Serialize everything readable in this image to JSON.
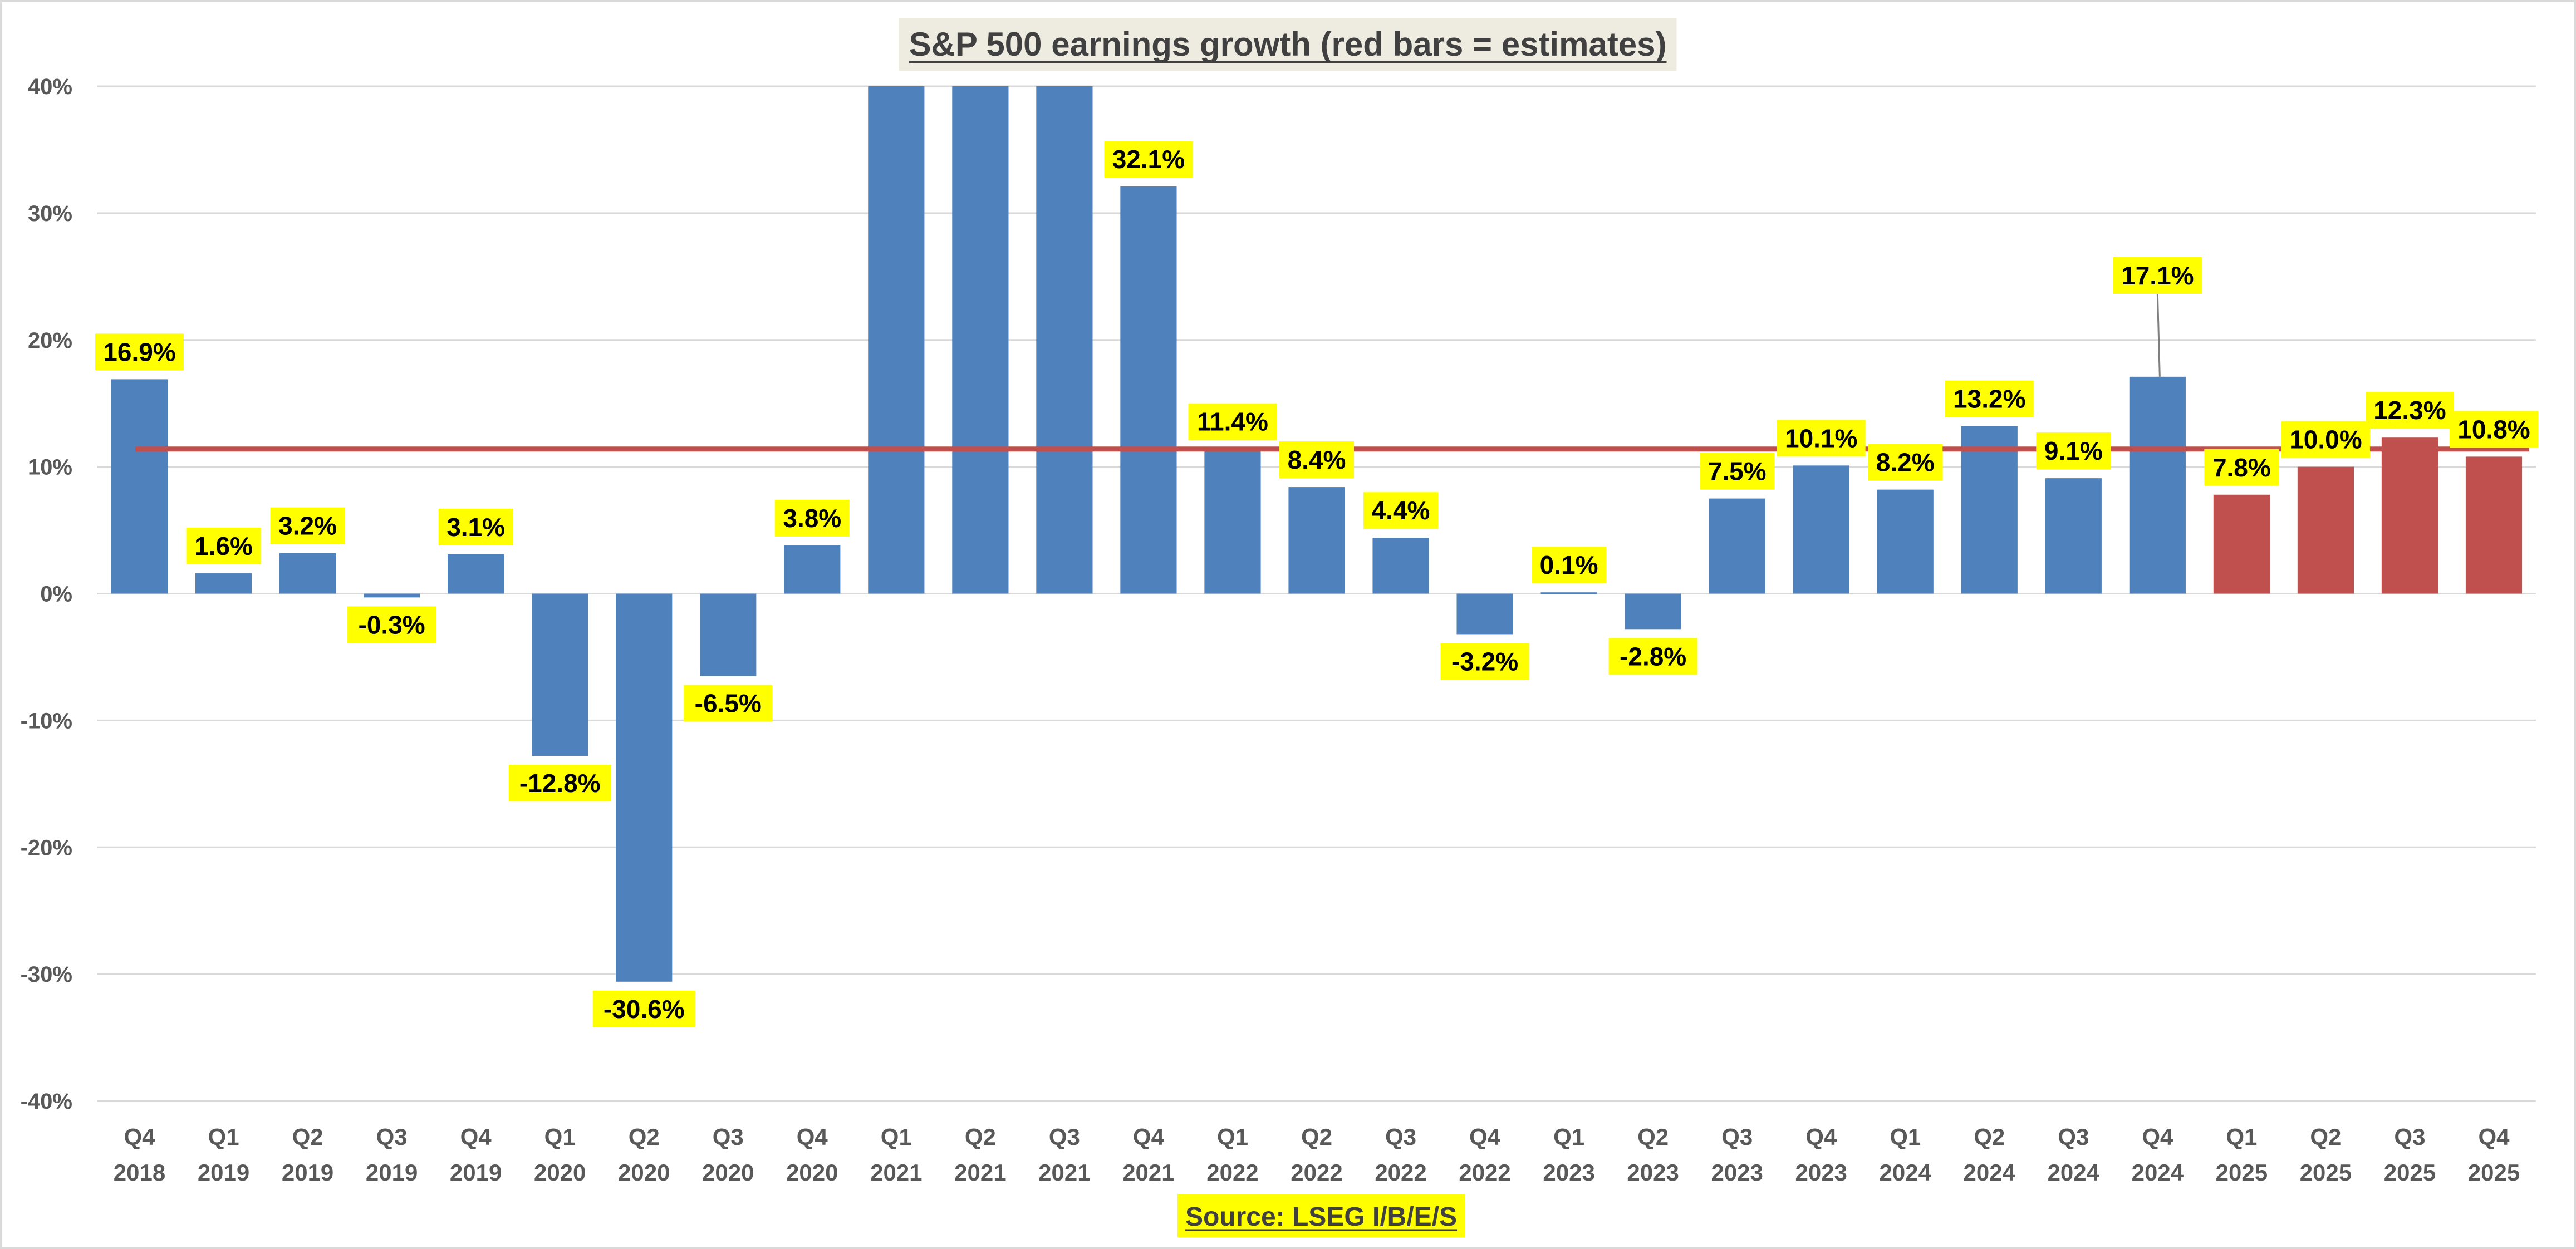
{
  "colors": {
    "actual_bar": "#4F81BD",
    "estimate_bar": "#C0504D",
    "average_line": "#C0504D",
    "label_highlight": "#FFFF00",
    "title_background": "#EEECE1",
    "gridline": "#D9D9D9",
    "axis_text": "#595959"
  },
  "chart_data": {
    "type": "bar",
    "title": "S&P 500 earnings growth (red bars = estimates)",
    "source": "Source: LSEG I/B/E/S",
    "xlabel": "",
    "ylabel": "",
    "ylim": [
      -40,
      40
    ],
    "y_ticks": [
      40,
      30,
      20,
      10,
      0,
      -10,
      -20,
      -30,
      -40
    ],
    "y_tick_labels": [
      "40%",
      "30%",
      "20%",
      "10%",
      "0%",
      "-10%",
      "-20%",
      "-30%",
      "-40%"
    ],
    "grid": true,
    "average_line_value": 11.4,
    "categories": [
      {
        "q": "Q4",
        "y": "2018"
      },
      {
        "q": "Q1",
        "y": "2019"
      },
      {
        "q": "Q2",
        "y": "2019"
      },
      {
        "q": "Q3",
        "y": "2019"
      },
      {
        "q": "Q4",
        "y": "2019"
      },
      {
        "q": "Q1",
        "y": "2020"
      },
      {
        "q": "Q2",
        "y": "2020"
      },
      {
        "q": "Q3",
        "y": "2020"
      },
      {
        "q": "Q4",
        "y": "2020"
      },
      {
        "q": "Q1",
        "y": "2021"
      },
      {
        "q": "Q2",
        "y": "2021"
      },
      {
        "q": "Q3",
        "y": "2021"
      },
      {
        "q": "Q4",
        "y": "2021"
      },
      {
        "q": "Q1",
        "y": "2022"
      },
      {
        "q": "Q2",
        "y": "2022"
      },
      {
        "q": "Q3",
        "y": "2022"
      },
      {
        "q": "Q4",
        "y": "2022"
      },
      {
        "q": "Q1",
        "y": "2023"
      },
      {
        "q": "Q2",
        "y": "2023"
      },
      {
        "q": "Q3",
        "y": "2023"
      },
      {
        "q": "Q4",
        "y": "2023"
      },
      {
        "q": "Q1",
        "y": "2024"
      },
      {
        "q": "Q2",
        "y": "2024"
      },
      {
        "q": "Q3",
        "y": "2024"
      },
      {
        "q": "Q4",
        "y": "2024"
      },
      {
        "q": "Q1",
        "y": "2025"
      },
      {
        "q": "Q2",
        "y": "2025"
      },
      {
        "q": "Q3",
        "y": "2025"
      },
      {
        "q": "Q4",
        "y": "2025"
      }
    ],
    "values": [
      16.9,
      1.6,
      3.2,
      -0.3,
      3.1,
      -12.8,
      -30.6,
      -6.5,
      3.8,
      40,
      40,
      40,
      32.1,
      11.4,
      8.4,
      4.4,
      -3.2,
      0.1,
      -2.8,
      7.5,
      10.1,
      8.2,
      13.2,
      9.1,
      17.1,
      7.8,
      10.0,
      12.3,
      10.8
    ],
    "is_estimate": [
      false,
      false,
      false,
      false,
      false,
      false,
      false,
      false,
      false,
      false,
      false,
      false,
      false,
      false,
      false,
      false,
      false,
      false,
      false,
      false,
      false,
      false,
      false,
      false,
      false,
      true,
      true,
      true,
      true
    ],
    "data_labels": [
      "16.9%",
      "1.6%",
      "3.2%",
      "-0.3%",
      "3.1%",
      "-12.8%",
      "-30.6%",
      "-6.5%",
      "3.8%",
      null,
      null,
      null,
      "32.1%",
      "11.4%",
      "8.4%",
      "4.4%",
      "-3.2%",
      "0.1%",
      "-2.8%",
      "7.5%",
      "10.1%",
      "8.2%",
      "13.2%",
      "9.1%",
      "17.1%",
      "7.8%",
      "10.0%",
      "12.3%",
      "10.8%"
    ]
  }
}
